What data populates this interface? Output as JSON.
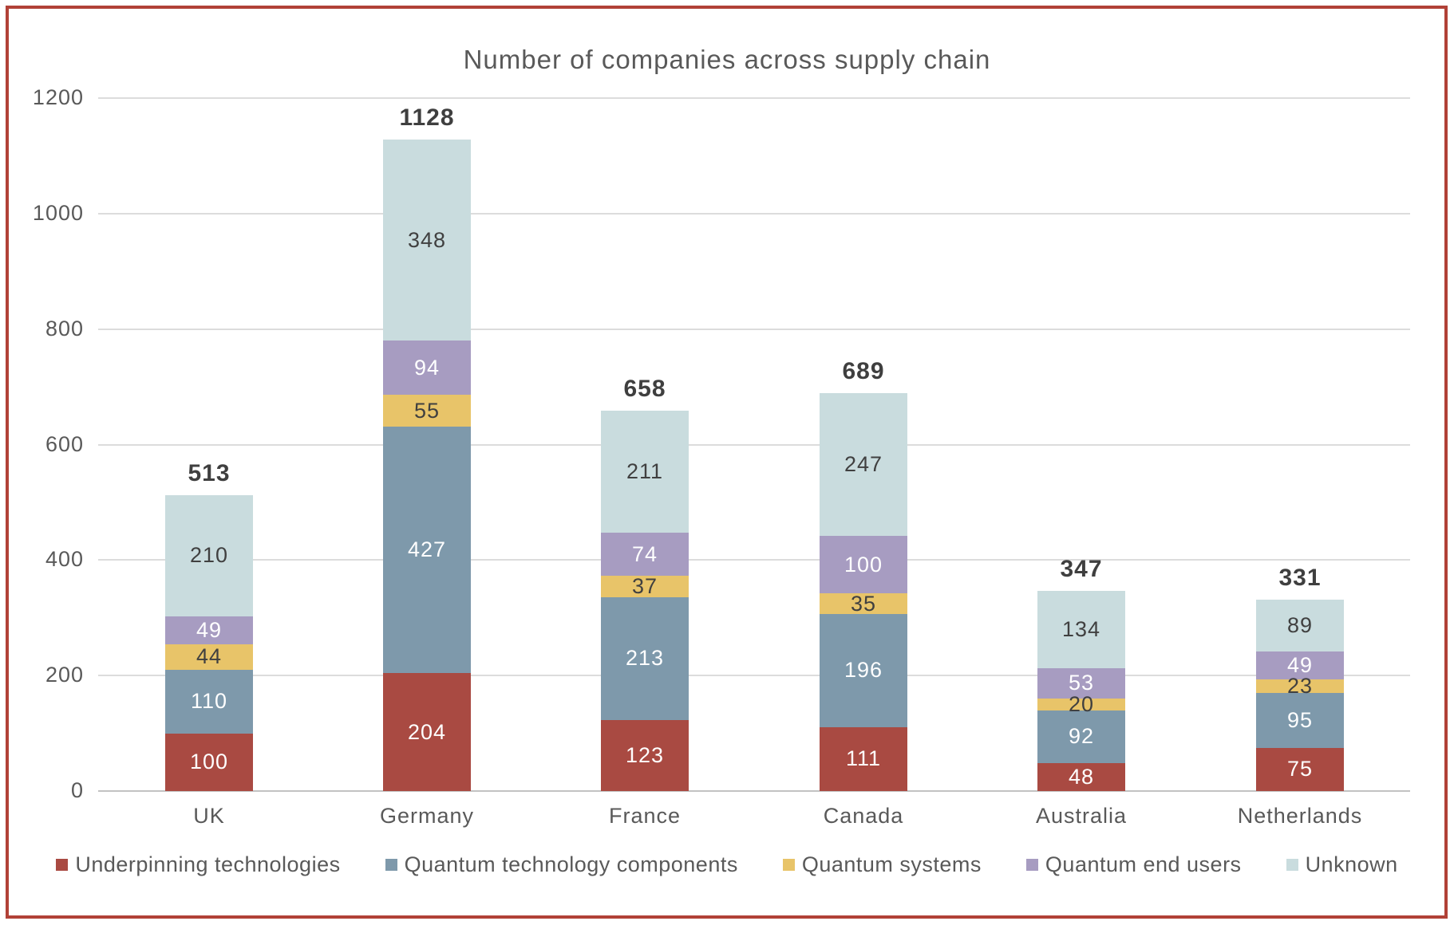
{
  "chart_data": {
    "type": "bar",
    "stacked": true,
    "title": "Number of companies across supply chain",
    "categories": [
      "UK",
      "Germany",
      "France",
      "Canada",
      "Australia",
      "Netherlands"
    ],
    "series": [
      {
        "name": "Underpinning technologies",
        "color": "#A94A42",
        "label_color": "#FFFFFF",
        "values": [
          100,
          204,
          123,
          111,
          48,
          75
        ]
      },
      {
        "name": "Quantum technology components",
        "color": "#7E99AB",
        "label_color": "#FFFFFF",
        "values": [
          110,
          427,
          213,
          196,
          92,
          95
        ]
      },
      {
        "name": "Quantum systems",
        "color": "#E8C469",
        "label_color": "#404040",
        "values": [
          44,
          55,
          37,
          35,
          20,
          23
        ]
      },
      {
        "name": "Quantum end users",
        "color": "#A79CC1",
        "label_color": "#FFFFFF",
        "values": [
          49,
          94,
          74,
          100,
          53,
          49
        ]
      },
      {
        "name": "Unknown",
        "color": "#C9DCDE",
        "label_color": "#404040",
        "values": [
          210,
          348,
          211,
          247,
          134,
          89
        ]
      }
    ],
    "totals": [
      513,
      1128,
      658,
      689,
      347,
      331
    ],
    "y_ticks": [
      0,
      200,
      400,
      600,
      800,
      1000,
      1200
    ],
    "ylim": [
      0,
      1200
    ],
    "xlabel": "",
    "ylabel": "",
    "grid": true,
    "legend_position": "bottom"
  },
  "colors": {
    "frame": "#B14137",
    "grid": "#DCDCDC",
    "baseline": "#C2C2C2",
    "tick_text": "#595959",
    "title_text": "#595959",
    "total_text": "#3F3F3F"
  }
}
